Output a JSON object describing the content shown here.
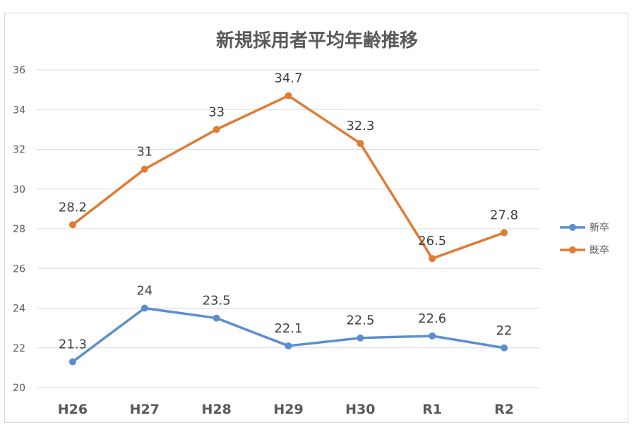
{
  "chart_data": {
    "type": "line",
    "title": "新規採用者平均年齢推移",
    "categories": [
      "H26",
      "H27",
      "H28",
      "H29",
      "H30",
      "R1",
      "R2"
    ],
    "series": [
      {
        "name": "新卒",
        "values": [
          21.3,
          24,
          23.5,
          22.1,
          22.5,
          22.6,
          22
        ],
        "color": "#5b8fd0"
      },
      {
        "name": "既卒",
        "values": [
          28.2,
          31,
          33,
          34.7,
          32.3,
          26.5,
          27.8
        ],
        "color": "#e07b34"
      }
    ],
    "ylim": [
      20,
      36
    ],
    "yticks": [
      "20",
      "22",
      "24",
      "26",
      "28",
      "30",
      "32",
      "34",
      "36"
    ],
    "grid": true,
    "legend": "right"
  }
}
